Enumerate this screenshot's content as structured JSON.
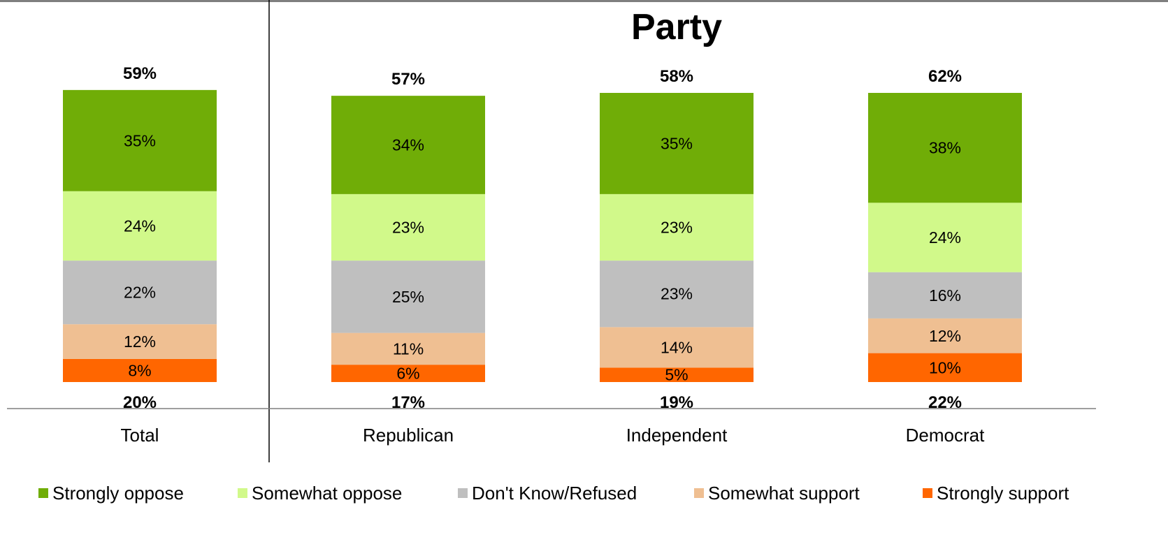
{
  "chart_data": {
    "type": "bar",
    "stacked": true,
    "percent": true,
    "group_title": "Party",
    "categories": [
      "Total",
      "Republican",
      "Independent",
      "Democrat"
    ],
    "series": [
      {
        "name": "Strongly support",
        "color": "#ff6600",
        "values": [
          8,
          6,
          5,
          10
        ]
      },
      {
        "name": "Somewhat support",
        "color": "#efbf92",
        "values": [
          12,
          11,
          14,
          12
        ]
      },
      {
        "name": "Don't Know/Refused",
        "color": "#bfbfbf",
        "values": [
          22,
          25,
          23,
          16
        ]
      },
      {
        "name": "Somewhat oppose",
        "color": "#d1f98a",
        "values": [
          24,
          23,
          23,
          24
        ]
      },
      {
        "name": "Strongly oppose",
        "color": "#70ad07",
        "values": [
          35,
          34,
          35,
          38
        ]
      }
    ],
    "value_labels": [
      [
        "8%",
        "12%",
        "22%",
        "24%",
        "35%"
      ],
      [
        "6%",
        "11%",
        "25%",
        "23%",
        "34%"
      ],
      [
        "5%",
        "14%",
        "23%",
        "23%",
        "35%"
      ],
      [
        "10%",
        "12%",
        "16%",
        "24%",
        "38%"
      ]
    ],
    "oppose_totals": [
      "59%",
      "57%",
      "58%",
      "62%"
    ],
    "support_totals": [
      "20%",
      "17%",
      "19%",
      "22%"
    ],
    "legend_order": [
      "Strongly oppose",
      "Somewhat oppose",
      "Don't Know/Refused",
      "Somewhat support",
      "Strongly support"
    ],
    "legend_position": "bottom",
    "grid": false
  }
}
